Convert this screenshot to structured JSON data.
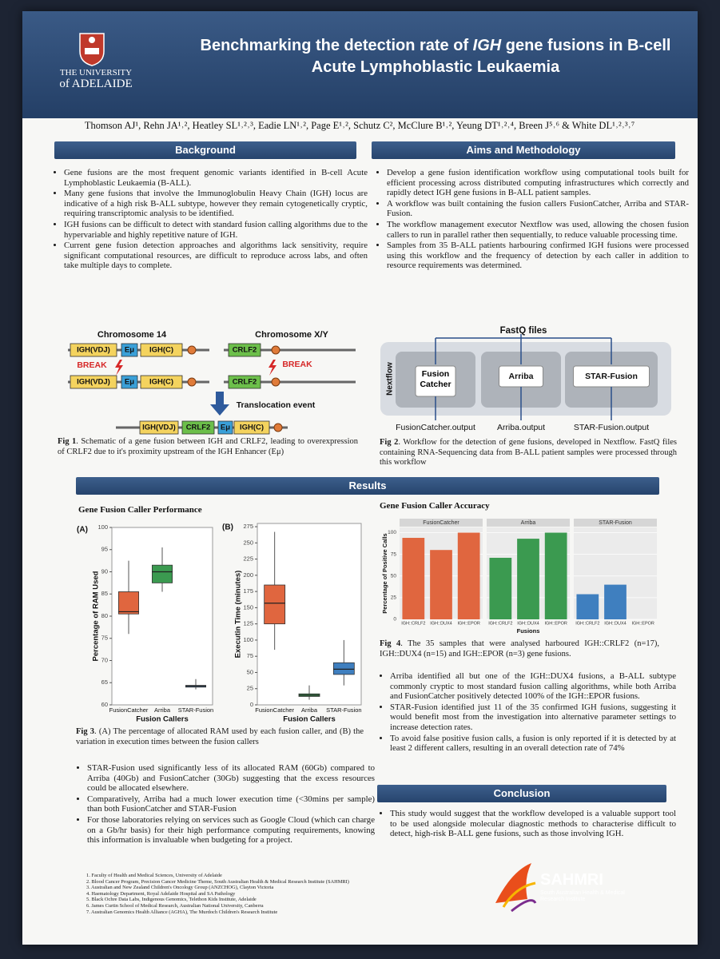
{
  "header": {
    "university_line1": "THE UNIVERSITY",
    "university_line2": "of ADELAIDE",
    "title": [
      "Benchmarking the detection rate of ",
      "IGH",
      " gene fusions in B-cell Acute Lymphoblastic Leukaemia"
    ]
  },
  "authors": "Thomson AJ¹, Rehn JA¹˒², Heatley SL¹˒²˒³, Eadie LN¹˒², Page E¹˒², Schutz C², McClure B¹˒², Yeung DT¹˒²˒⁴, Breen J⁵˒⁶ & White DL¹˒²˒³˒⁷",
  "background": {
    "heading": "Background",
    "bullets": [
      "Gene fusions are the most frequent genomic variants identified in B-cell Acute Lymphoblastic Leukaemia (B-ALL).",
      "Many gene fusions that involve the Immunoglobulin Heavy Chain (IGH) locus are indicative of a high risk B-ALL subtype, however they remain cytogenetically cryptic, requiring transcriptomic analysis to be identified.",
      "IGH fusions can be difficult to detect with standard fusion calling algorithms due to the hypervariable and highly repetitive nature of IGH.",
      "Current gene fusion detection approaches and algorithms lack sensitivity, require significant computational resources, are difficult to reproduce across labs, and often take multiple days to complete."
    ]
  },
  "fig1": {
    "chromosome_14": "Chromosome 14",
    "chromosome_xy": "Chromosome X/Y",
    "igh_vdj": "IGH(VDJ)",
    "emu": "Eμ",
    "igh_c": "IGH(C)",
    "crlf2": "CRLF2",
    "break": "BREAK",
    "translocation": "Translocation event",
    "caption_label": "Fig 1",
    "caption": ". Schematic of a gene fusion between IGH and CRLF2, leading to overexpression of CRLF2 due to it's proximity upstream of the IGH Enhancer (Eμ)"
  },
  "aims": {
    "heading": "Aims and Methodology",
    "bullets": [
      "Develop a gene fusion identification workflow using computational tools built for efficient processing across distributed computing infrastructures which correctly and rapidly detect IGH gene fusions in B-ALL patient samples.",
      "A workflow was built containing the fusion callers FusionCatcher, Arriba and STAR-Fusion.",
      "The workflow management executor Nextflow was used, allowing the chosen fusion callers to run in parallel rather then sequentially, to reduce valuable processing time.",
      "Samples from 35 B-ALL patients harbouring confirmed IGH fusions were processed using this workflow and the frequency of detection by each caller in addition to resource requirements was determined."
    ]
  },
  "fig2": {
    "input": "FastQ files",
    "executor": "Nextflow",
    "callers": [
      "Fusion Catcher",
      "Arriba",
      "STAR-Fusion"
    ],
    "outputs": [
      "FusionCatcher.output",
      "Arriba.output",
      "STAR-Fusion.output"
    ],
    "caption_label": "Fig 2",
    "caption": ". Workflow for the detection of gene fusions, developed in Nextflow. FastQ files containing RNA-Sequencing data from B-ALL patient samples were processed through this workflow"
  },
  "results": {
    "heading": "Results"
  },
  "fig3": {
    "title": "Gene Fusion Caller Performance",
    "xlabel": "Fusion Callers",
    "categories": [
      "FusionCatcher",
      "Arriba",
      "STAR-Fusion"
    ],
    "colors": [
      "#e0663f",
      "#3b9a50",
      "#3f7fbf"
    ],
    "panels": [
      {
        "tag": "(A)",
        "ylabel": "Percentage of RAM Used",
        "ylim": [
          60,
          100
        ],
        "yticks": [
          60,
          65,
          70,
          75,
          80,
          85,
          90,
          95,
          100
        ],
        "boxes": [
          {
            "whisker_low": 76,
            "q1": 80.5,
            "median": 81,
            "q3": 85.5,
            "whisker_high": 92.5
          },
          {
            "whisker_low": 85.5,
            "q1": 87.5,
            "median": 90,
            "q3": 91.5,
            "whisker_high": 95.5
          },
          {
            "whisker_low": 63.5,
            "q1": 64,
            "median": 64.2,
            "q3": 64.4,
            "whisker_high": 65.8
          }
        ]
      },
      {
        "tag": "(B)",
        "ylabel": "Executin Time (minutes)",
        "ylim": [
          0,
          280
        ],
        "yticks": [
          0,
          25,
          50,
          75,
          100,
          125,
          150,
          175,
          200,
          225,
          250,
          275
        ],
        "boxes": [
          {
            "whisker_low": 85,
            "q1": 125,
            "median": 157,
            "q3": 185,
            "whisker_high": 267
          },
          {
            "whisker_low": 8,
            "q1": 13,
            "median": 15,
            "q3": 17,
            "whisker_high": 30
          },
          {
            "whisker_low": 30,
            "q1": 47,
            "median": 55,
            "q3": 65,
            "whisker_high": 100
          }
        ]
      }
    ],
    "caption_label": "Fig 3",
    "caption": ". (A) The percentage of allocated RAM used by each fusion caller, and (B) the variation in execution times between the fusion callers"
  },
  "performance_bullets": [
    "STAR-Fusion used significantly less of its allocated RAM (60Gb) compared to Arriba (40Gb) and FusionCatcher (30Gb) suggesting that the excess resources could be allocated elsewhere.",
    "Comparatively, Arriba had a much lower execution time (<30mins per sample) than both FusionCatcher and STAR-Fusion",
    "For those laboratories relying on services such as Google Cloud (which can charge on a Gb/hr basis) for their high performance computing requirements, knowing this information is invaluable when budgeting for a project."
  ],
  "fig4": {
    "title": "Gene Fusion Caller Accuracy",
    "ylabel": "Percentage of Positive Calls",
    "xlabel": "Fusions",
    "ylim": [
      0,
      106
    ],
    "yticks": [
      0,
      25,
      50,
      75,
      100
    ],
    "facets": [
      {
        "name": "FusionCatcher",
        "color": "#e0663f",
        "categories": [
          "IGH::CRLF2",
          "IGH::DUX4",
          "IGH::EPOR"
        ],
        "values": [
          94,
          80,
          100
        ]
      },
      {
        "name": "Arriba",
        "color": "#3b9a50",
        "categories": [
          "IGH::CRLF2",
          "IGH::DUX4",
          "IGH::EPOR"
        ],
        "values": [
          71,
          93,
          100
        ]
      },
      {
        "name": "STAR-Fusion",
        "color": "#3f7fbf",
        "categories": [
          "IGH::CRLF2",
          "IGH::DUX4",
          "IGH::EPOR"
        ],
        "values": [
          29,
          40,
          0
        ]
      }
    ],
    "caption_label": "Fig 4",
    "caption": ". The 35 samples that were analysed harboured IGH::CRLF2 (n=17), IGH::DUX4 (n=15) and IGH::EPOR (n=3) gene fusions."
  },
  "accuracy_bullets": [
    "Arriba identified all but one of the IGH::DUX4 fusions, a B-ALL subtype commonly cryptic to most standard fusion calling algorithms, while both Arriba and FusionCatcher positively detected 100% of the IGH::EPOR fusions.",
    "STAR-Fusion identified just 11 of the 35 confirmed IGH fusions, suggesting it would benefit most from the investigation into alternative parameter settings to increase detection rates.",
    "To avoid false positive fusion calls, a fusion is only reported if it is detected by at least 2 different callers, resulting in an overall detection rate of 74%"
  ],
  "conclusion": {
    "heading": "Conclusion",
    "bullets": [
      "This study would suggest that the workflow developed is a valuable support tool to be used alongside molecular diagnostic methods to characterise difficult to detect, high-risk B-ALL gene fusions, such as those involving IGH."
    ]
  },
  "footnotes": [
    "1. Faculty of Health and Medical Sciences, University of Adelaide",
    "2. Blood Cancer Program, Precision Cancer Medicine Theme, South Australian Health & Medical Research Institute (SAHMRI)",
    "3. Australian and New Zealand Children's Oncology Group (ANZCHOG), Clayton Victoria",
    "4. Haematology Department, Royal Adelaide Hospital and SA Pathology",
    "5. Black Ochre Data Labs, Indigenous Genomics, Telethon Kids Institute, Adelaide",
    "6. James Curtin School of Medical Research, Australian National University, Canberra",
    "7. Australian Genomics Health Alliance (AGHA), The Murdoch Children's Research Institute"
  ],
  "sahmri": {
    "name": "SAHMRI",
    "subtitle": "South Australian Health & Medical Research Institute"
  }
}
